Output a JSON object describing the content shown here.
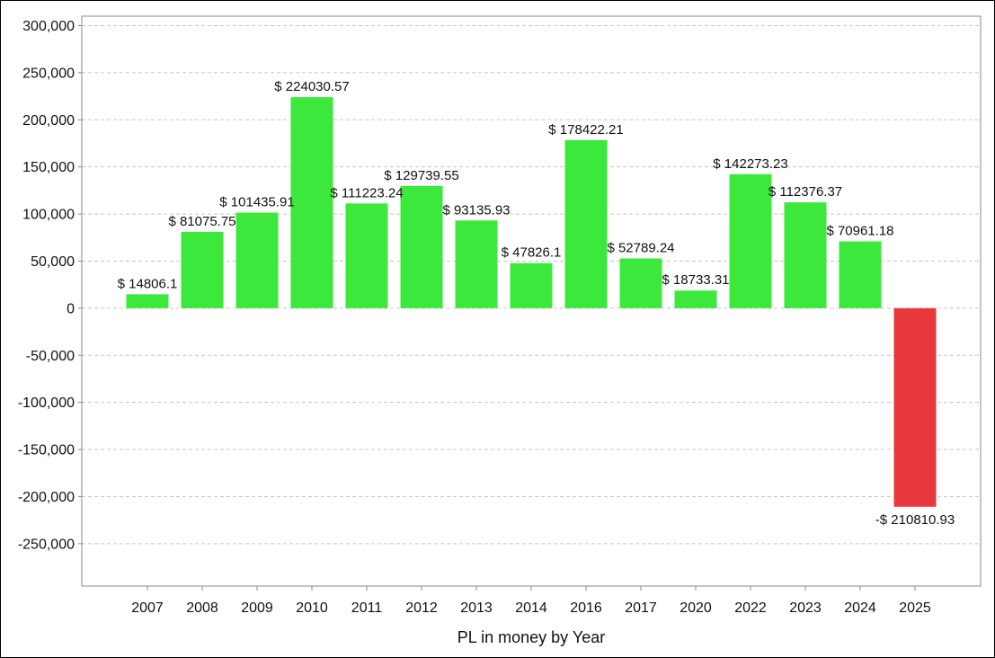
{
  "chart_data": {
    "type": "bar",
    "title": "",
    "xlabel": "PL in money by Year",
    "ylabel": "",
    "categories": [
      "2007",
      "2008",
      "2009",
      "2010",
      "2011",
      "2012",
      "2013",
      "2014",
      "2016",
      "2017",
      "2020",
      "2022",
      "2023",
      "2024",
      "2025"
    ],
    "values": [
      14806.1,
      81075.75,
      101435.91,
      224030.57,
      111223.24,
      129739.55,
      93135.93,
      47826.1,
      178422.21,
      52789.24,
      18733.31,
      142273.23,
      112376.37,
      70961.18,
      -210810.93
    ],
    "data_labels": [
      "$ 14806.1",
      "$ 81075.75",
      "$ 101435.91",
      "$ 224030.57",
      "$ 111223.24",
      "$ 129739.55",
      "$ 93135.93",
      "$ 47826.1",
      "$ 178422.21",
      "$ 52789.24",
      "$ 18733.31",
      "$ 142273.23",
      "$ 112376.37",
      "$ 70961.18",
      "-$ 210810.93"
    ],
    "ylim": [
      -295000,
      310000
    ],
    "yticks": [
      300000,
      250000,
      200000,
      150000,
      100000,
      50000,
      0,
      -50000,
      -100000,
      -150000,
      -200000,
      -250000
    ],
    "ytick_labels": [
      "300,000",
      "250,000",
      "200,000",
      "150,000",
      "100,000",
      "50,000",
      "0",
      "-50,000",
      "-100,000",
      "-150,000",
      "-200,000",
      "-250,000"
    ],
    "grid": true,
    "legend": "none",
    "colors": {
      "positive": "#3de83d",
      "negative": "#e8383d",
      "grid": "#c8c8c8",
      "axis": "#888888"
    }
  }
}
